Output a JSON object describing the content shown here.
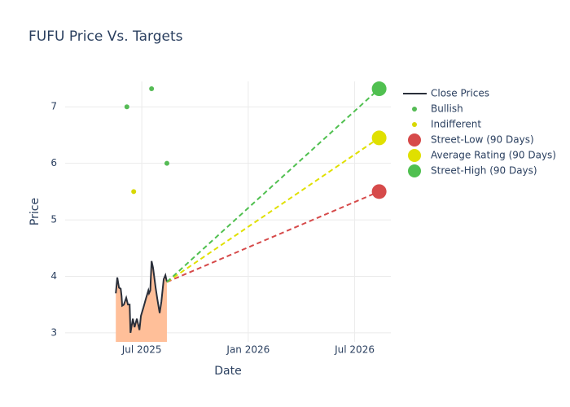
{
  "chart_data": {
    "type": "line",
    "title": "FUFU Price Vs. Targets",
    "x_label": "Date",
    "y_label": "Price",
    "xlim": [
      2025.14,
      2026.67
    ],
    "xticks": [
      {
        "value": 2025.5,
        "label": "Jul 2025"
      },
      {
        "value": 2026.0,
        "label": "Jan 2026"
      },
      {
        "value": 2026.5,
        "label": "Jul 2026"
      }
    ],
    "ylim": [
      2.84,
      7.45
    ],
    "yticks": [
      3,
      4,
      5,
      6,
      7
    ],
    "grid": true,
    "legend": "outside right",
    "series": [
      {
        "name": "Close Prices",
        "mode": "lines",
        "color": "#2a2f3a",
        "fill": "#ffbf99",
        "x": [
          2025.378,
          2025.385,
          2025.393,
          2025.401,
          2025.405,
          2025.408,
          2025.416,
          2025.427,
          2025.435,
          2025.443,
          2025.447,
          2025.458,
          2025.466,
          2025.477,
          2025.489,
          2025.496,
          2025.508,
          2025.519,
          2025.531,
          2025.534,
          2025.54,
          2025.546,
          2025.553,
          2025.565,
          2025.573,
          2025.584,
          2025.592,
          2025.603,
          2025.611,
          2025.618
        ],
        "values": [
          3.7,
          3.98,
          3.8,
          3.78,
          3.65,
          3.48,
          3.5,
          3.62,
          3.5,
          3.5,
          3.0,
          3.25,
          3.1,
          3.25,
          3.05,
          3.3,
          3.45,
          3.6,
          3.75,
          3.7,
          3.75,
          4.27,
          4.15,
          3.8,
          3.6,
          3.35,
          3.55,
          3.95,
          4.02,
          3.9
        ]
      },
      {
        "name": "Bullish",
        "mode": "markers",
        "color": "#55bb55",
        "x": [
          2025.43,
          2025.546,
          2025.618
        ],
        "values": [
          7.0,
          7.32,
          6.0
        ]
      },
      {
        "name": "Indifferent",
        "mode": "markers",
        "color": "#d8d800",
        "x": [
          2025.462
        ],
        "values": [
          5.5
        ]
      },
      {
        "name": "Street-Low (90 Days)",
        "mode": "markers",
        "line_dash": "dash",
        "color": "#d64a4a",
        "x": [
          2026.615
        ],
        "values": [
          5.5
        ]
      },
      {
        "name": "Average Rating (90 Days)",
        "mode": "markers",
        "line_dash": "dash",
        "color": "#e0e000",
        "x": [
          2026.615
        ],
        "values": [
          6.45
        ]
      },
      {
        "name": "Street-High (90 Days)",
        "mode": "markers",
        "line_dash": "dash",
        "color": "#50c050",
        "x": [
          2026.615
        ],
        "values": [
          7.32
        ]
      }
    ]
  }
}
